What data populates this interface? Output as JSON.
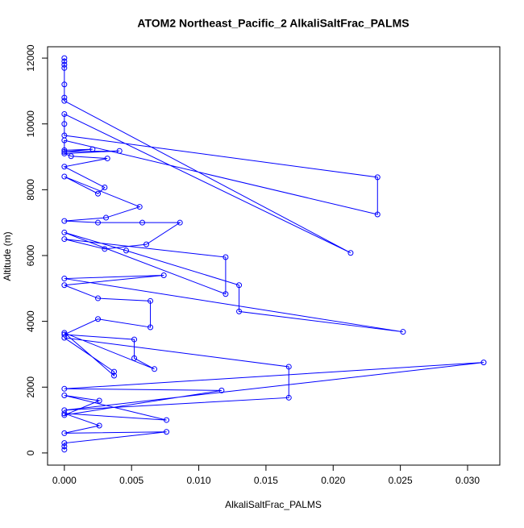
{
  "chart_data": {
    "type": "line",
    "title": "ATOM2 Northeast_Pacific_2 AlkaliSaltFrac_PALMS",
    "x_label": "AlkaliSaltFrac_PALMS",
    "y_label": "Altitude (m)",
    "color": "#0000ff",
    "x": [
      0,
      0,
      0,
      0,
      0,
      0,
      0,
      0.0213,
      0,
      0,
      0,
      0.0233,
      0.0233,
      0,
      0,
      0.0021,
      0,
      0.0041,
      0,
      0.0005,
      0.0032,
      0,
      0.003,
      0.0025,
      0,
      0.0056,
      0.0031,
      0,
      0.0025,
      0.0058,
      0.0086,
      0.0061,
      0.003,
      0,
      0.012,
      0.012,
      0,
      0.0046,
      0.013,
      0.013,
      0.0252,
      0,
      0.0074,
      0,
      0.0025,
      0.0064,
      0.0064,
      0.0025,
      0,
      0.0052,
      0.0052,
      0.0067,
      0,
      0.0037,
      0.0037,
      0,
      0.0167,
      0.0167,
      0,
      0.0312,
      0,
      0.0117,
      0,
      0.0026,
      0,
      0.0076,
      0,
      0.0026,
      0,
      0.0076,
      0,
      0,
      0
    ],
    "y": [
      12000,
      11900,
      11800,
      11700,
      11200,
      10800,
      10700,
      6080,
      10300,
      10000,
      9650,
      8380,
      7250,
      9500,
      9200,
      9230,
      9150,
      9180,
      9100,
      9020,
      8950,
      8700,
      8070,
      7880,
      8400,
      7480,
      7150,
      7050,
      7000,
      7000,
      7000,
      6340,
      6200,
      6500,
      5950,
      4830,
      6700,
      6150,
      5100,
      4300,
      3680,
      5300,
      5400,
      5100,
      4700,
      4620,
      3820,
      4070,
      3600,
      3450,
      2880,
      2550,
      3650,
      2350,
      2470,
      3500,
      2620,
      1680,
      1300,
      2750,
      1950,
      1900,
      1150,
      1590,
      1750,
      1000,
      1200,
      830,
      600,
      640,
      300,
      200,
      100
    ],
    "xlim": [
      -0.00125,
      0.0324
    ],
    "ylim": [
      -370,
      12345
    ],
    "xticks": [
      {
        "value": 0,
        "label": "0.000"
      },
      {
        "value": 0.005,
        "label": "0.005"
      },
      {
        "value": 0.01,
        "label": "0.010"
      },
      {
        "value": 0.015,
        "label": "0.015"
      },
      {
        "value": 0.02,
        "label": "0.020"
      },
      {
        "value": 0.025,
        "label": "0.025"
      },
      {
        "value": 0.03,
        "label": "0.030"
      }
    ],
    "yticks": [
      0,
      2000,
      4000,
      6000,
      8000,
      10000,
      12000
    ]
  }
}
